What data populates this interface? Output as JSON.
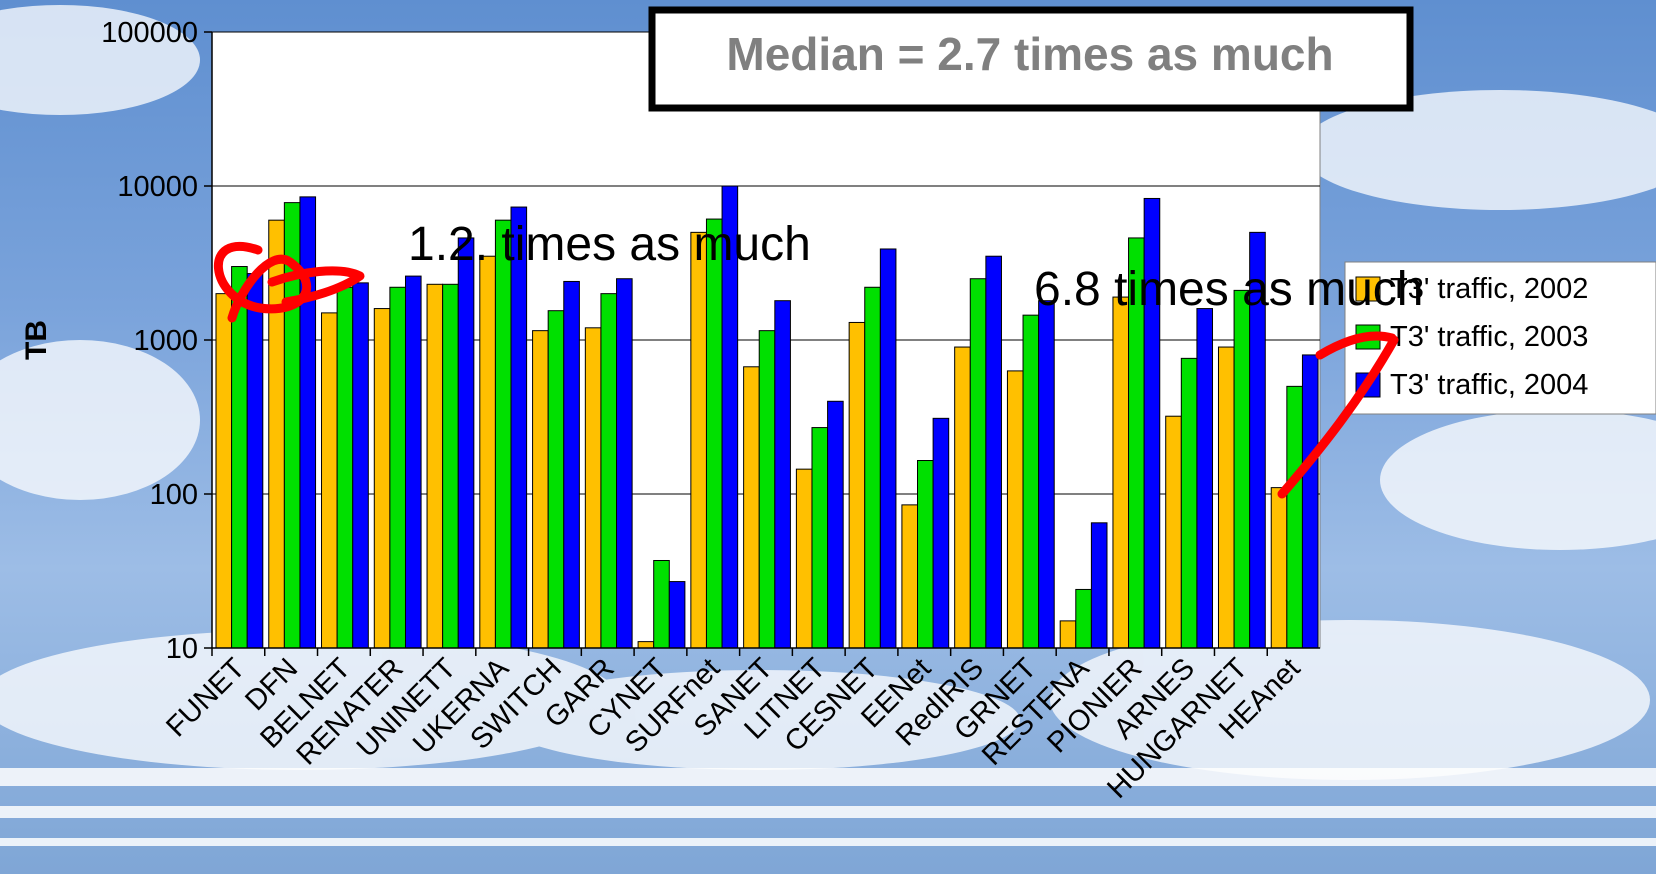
{
  "chart_data": {
    "type": "bar",
    "scale": "log",
    "ylabel": "TB",
    "ylim": [
      10,
      100000
    ],
    "yticks": [
      "10",
      "100",
      "1000",
      "10000",
      "100000"
    ],
    "grid": true,
    "legend_position": "right",
    "categories": [
      "FUNET",
      "DFN",
      "BELNET",
      "RENATER",
      "UNINETT",
      "UKERNA",
      "SWITCH",
      "GARR",
      "CYNET",
      "SURFnet",
      "SANET",
      "LITNET",
      "CESNET",
      "EENet",
      "RedIRIS",
      "GRNET",
      "RESTENA",
      "PIONIER",
      "ARNES",
      "HUNGARNET",
      "HEAnet"
    ],
    "series": [
      {
        "name": "T3' traffic, 2002",
        "color": "#ffc000",
        "values": [
          2000,
          6000,
          1500,
          1600,
          2300,
          3500,
          1150,
          1200,
          11,
          5000,
          670,
          145,
          1300,
          85,
          900,
          630,
          15,
          1900,
          320,
          900,
          110
        ]
      },
      {
        "name": "T3' traffic, 2003",
        "color": "#00e000",
        "values": [
          3000,
          7800,
          2200,
          2200,
          2300,
          6000,
          1550,
          2000,
          37,
          6100,
          1150,
          270,
          2200,
          165,
          2500,
          1450,
          24,
          4600,
          760,
          2100,
          500
        ]
      },
      {
        "name": "T3' traffic, 2004",
        "color": "#0000ff",
        "values": [
          2700,
          8500,
          2350,
          2600,
          4600,
          7300,
          2400,
          2500,
          27,
          10000,
          1800,
          400,
          3900,
          310,
          3500,
          1800,
          65,
          8300,
          1600,
          5000,
          800
        ]
      }
    ]
  },
  "annotations": {
    "median": "Median = 2.7 times as much",
    "low": "1.2. times as much",
    "high": "6.8 times as much"
  }
}
